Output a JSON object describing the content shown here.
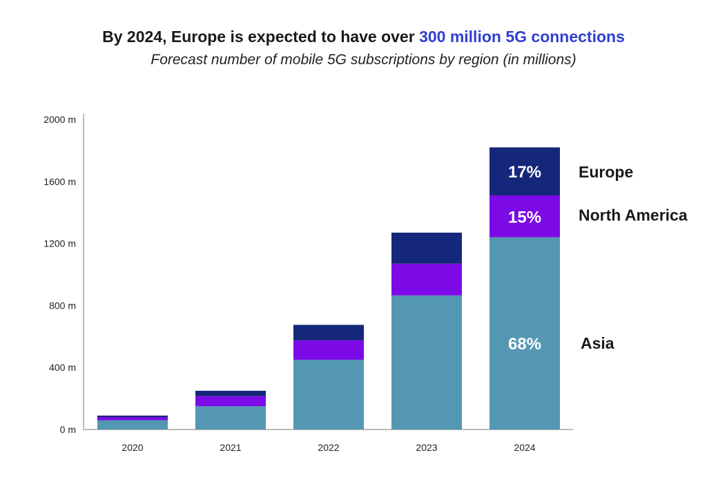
{
  "header": {
    "title_main": "By 2024, Europe is expected to have over",
    "title_highlight": "300 million 5G connections",
    "subtitle": "Forecast number of mobile 5G subscriptions by region (in millions)"
  },
  "colors": {
    "asia": "#5497b3",
    "north_america": "#7c0ae6",
    "europe": "#15277a",
    "highlight": "#2f3fd0",
    "axis": "#bbbbbb"
  },
  "chart_data": {
    "type": "bar",
    "stacked": true,
    "categories": [
      "2020",
      "2021",
      "2022",
      "2023",
      "2024"
    ],
    "series": [
      {
        "name": "Asia",
        "values": [
          60,
          150,
          450,
          865,
          1240
        ]
      },
      {
        "name": "North America",
        "values": [
          20,
          65,
          125,
          205,
          270
        ]
      },
      {
        "name": "Europe",
        "values": [
          10,
          35,
          100,
          200,
          310
        ]
      }
    ],
    "ylim": [
      0,
      2000
    ],
    "yticks": [
      0,
      400,
      800,
      1200,
      1600,
      2000
    ],
    "ytick_labels": [
      "0 m",
      "400 m",
      "800 m",
      "1200 m",
      "1600 m",
      "2000 m"
    ],
    "segment_labels_2024": [
      "68%",
      "15%",
      "17%"
    ],
    "side_labels": [
      "Asia",
      "North America",
      "Europe"
    ],
    "xlabel": "",
    "ylabel": "",
    "grid": false,
    "legend": "none"
  }
}
